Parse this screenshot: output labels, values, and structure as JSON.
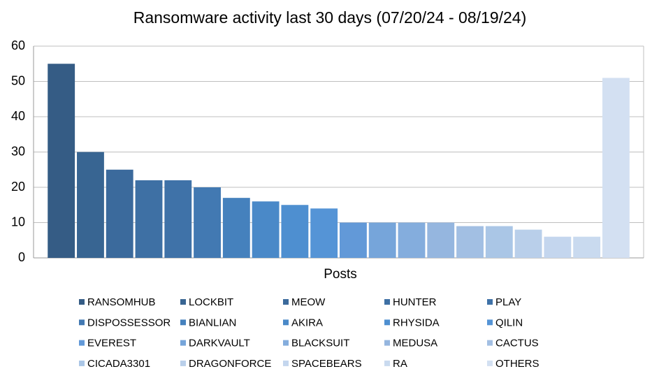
{
  "chart_data": {
    "type": "bar",
    "title": "Ransomware activity last 30 days (07/20/24 - 08/19/24)",
    "x_label": "Posts",
    "categories": [
      "Posts"
    ],
    "series": [
      {
        "name": "RANSOMHUB",
        "color": "#355c85",
        "values": [
          55
        ]
      },
      {
        "name": "LOCKBIT",
        "color": "#386592",
        "values": [
          30
        ]
      },
      {
        "name": "MEOW",
        "color": "#3b6a9c",
        "values": [
          25
        ]
      },
      {
        "name": "HUNTER",
        "color": "#3e70a4",
        "values": [
          22
        ]
      },
      {
        "name": "PLAY",
        "color": "#3f72a8",
        "values": [
          22
        ]
      },
      {
        "name": "DISPOSSESSOR",
        "color": "#4279b2",
        "values": [
          20
        ]
      },
      {
        "name": "BIANLIAN",
        "color": "#4581bd",
        "values": [
          17
        ]
      },
      {
        "name": "AKIRA",
        "color": "#4a89c8",
        "values": [
          16
        ]
      },
      {
        "name": "RHYSIDA",
        "color": "#4e8fd0",
        "values": [
          15
        ]
      },
      {
        "name": "QILIN",
        "color": "#5594d6",
        "values": [
          14
        ]
      },
      {
        "name": "EVEREST",
        "color": "#6299d8",
        "values": [
          10
        ]
      },
      {
        "name": "DARKVAULT",
        "color": "#76a5da",
        "values": [
          10
        ]
      },
      {
        "name": "BLACKSUIT",
        "color": "#84addd",
        "values": [
          10
        ]
      },
      {
        "name": "MEDUSA",
        "color": "#95b6df",
        "values": [
          10
        ]
      },
      {
        "name": "CACTUS",
        "color": "#a2bfe3",
        "values": [
          9
        ]
      },
      {
        "name": "CICADA3301",
        "color": "#aac6e6",
        "values": [
          9
        ]
      },
      {
        "name": "DRAGONFORCE",
        "color": "#b9cfea",
        "values": [
          8
        ]
      },
      {
        "name": "SPACEBEARS",
        "color": "#c4d6ee",
        "values": [
          6
        ]
      },
      {
        "name": "RA",
        "color": "#c9daef",
        "values": [
          6
        ]
      },
      {
        "name": "OTHERS",
        "color": "#d3e0f2",
        "values": [
          51
        ]
      }
    ],
    "ylim": [
      0,
      60
    ],
    "yticks": [
      0,
      10,
      20,
      30,
      40,
      50,
      60
    ],
    "grid": true,
    "legend": "bottom"
  }
}
